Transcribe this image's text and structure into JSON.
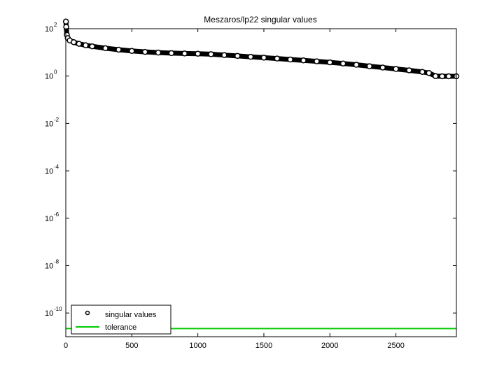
{
  "chart_data": {
    "type": "scatter",
    "title": "Meszaros/lp22 singular values",
    "xlabel": "",
    "ylabel": "",
    "xlim": [
      0,
      2958
    ],
    "ylim_exponent": [
      -11,
      2
    ],
    "y_scale": "log",
    "x_ticks": [
      0,
      500,
      1000,
      1500,
      2000,
      2500
    ],
    "x_tick_labels": [
      "0",
      "500",
      "1000",
      "1500",
      "2000",
      "2500"
    ],
    "y_ticks_exponent": [
      2,
      0,
      -2,
      -4,
      -6,
      -8,
      -10
    ],
    "y_tick_labels": [
      {
        "base": "10",
        "exp": "2"
      },
      {
        "base": "10",
        "exp": "0"
      },
      {
        "base": "10",
        "exp": "-2"
      },
      {
        "base": "10",
        "exp": "-4"
      },
      {
        "base": "10",
        "exp": "-6"
      },
      {
        "base": "10",
        "exp": "-8"
      },
      {
        "base": "10",
        "exp": "-10"
      }
    ],
    "grid": false,
    "legend_position": "bottom-left",
    "series": [
      {
        "name": "singular values",
        "style": "markers",
        "marker": "circle",
        "color": "#000000",
        "points": [
          [
            1,
            200
          ],
          [
            3,
            120
          ],
          [
            8,
            55
          ],
          [
            15,
            40
          ],
          [
            30,
            32
          ],
          [
            60,
            27
          ],
          [
            100,
            23
          ],
          [
            150,
            20
          ],
          [
            200,
            18
          ],
          [
            300,
            15
          ],
          [
            400,
            13
          ],
          [
            500,
            11.5
          ],
          [
            600,
            10.5
          ],
          [
            700,
            9.8
          ],
          [
            800,
            9.3
          ],
          [
            900,
            9.0
          ],
          [
            1000,
            8.8
          ],
          [
            1100,
            8.4
          ],
          [
            1200,
            7.7
          ],
          [
            1300,
            7.1
          ],
          [
            1400,
            6.5
          ],
          [
            1500,
            6.0
          ],
          [
            1600,
            5.5
          ],
          [
            1700,
            5.0
          ],
          [
            1800,
            4.6
          ],
          [
            1900,
            4.2
          ],
          [
            2000,
            3.8
          ],
          [
            2100,
            3.4
          ],
          [
            2200,
            3.0
          ],
          [
            2300,
            2.6
          ],
          [
            2400,
            2.3
          ],
          [
            2500,
            2.0
          ],
          [
            2600,
            1.75
          ],
          [
            2700,
            1.5
          ],
          [
            2750,
            1.35
          ],
          [
            2800,
            1.0
          ],
          [
            2850,
            0.98
          ],
          [
            2900,
            0.98
          ],
          [
            2958,
            0.98
          ]
        ]
      },
      {
        "name": "tolerance",
        "style": "line",
        "color": "#00cc00",
        "points": [
          [
            0,
            2.2e-11
          ],
          [
            2958,
            2.2e-11
          ]
        ]
      }
    ]
  }
}
